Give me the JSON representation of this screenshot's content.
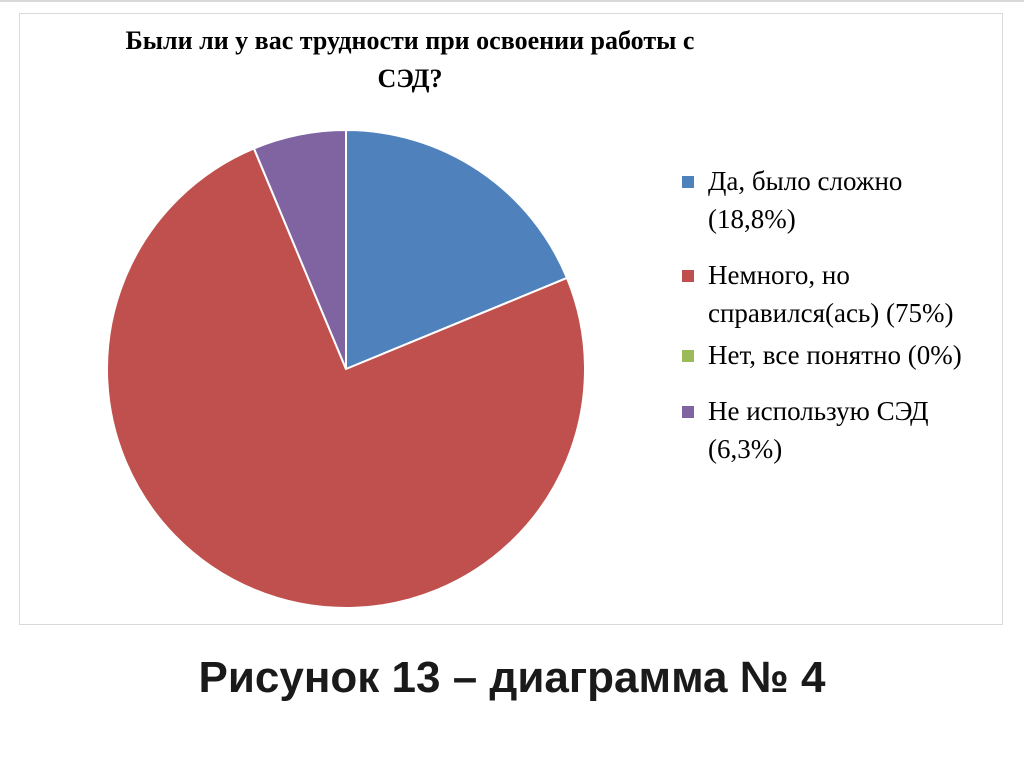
{
  "chart_data": {
    "type": "pie",
    "title": "Были ли у вас трудности при освоении работы с СЭД?",
    "categories": [
      "Да, было сложно (18,8%)",
      "Немного, но справился(ась) (75%)",
      "Нет, все понятно (0%)",
      "Не использую СЭД (6,3%)"
    ],
    "values": [
      18.8,
      75,
      0,
      6.3
    ],
    "colors": [
      "#4f81bd",
      "#c0504d",
      "#9bbb59",
      "#8064a2"
    ],
    "legend_position": "right",
    "start_angle": "top, clockwise"
  },
  "caption": "Рисунок 13 – диаграмма № 4"
}
